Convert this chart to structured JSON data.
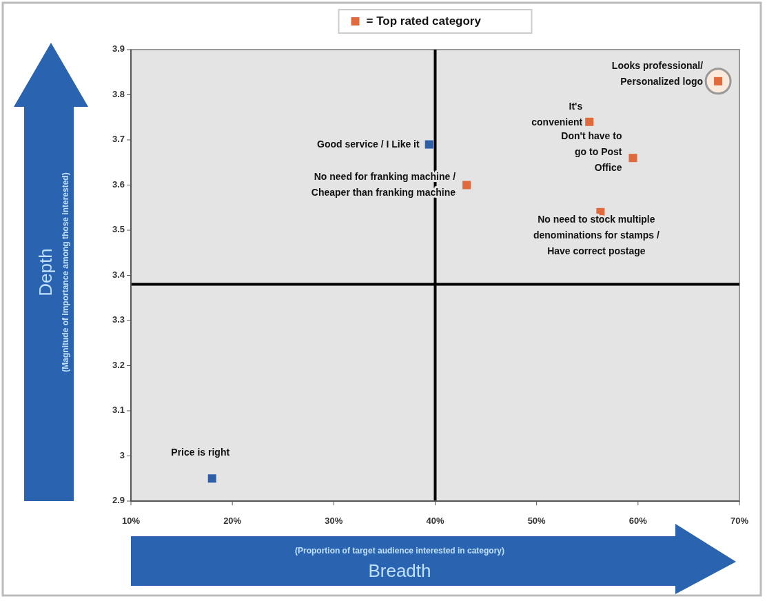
{
  "chart_data": {
    "type": "scatter",
    "xlabel": "(Proportion of target audience interested in category)\nBreadth",
    "ylabel": "Depth\n(Magnitude of importance among those interested)",
    "xlim": [
      10,
      70
    ],
    "xticks": [
      {
        "value": 10,
        "label": "10%"
      },
      {
        "value": 20,
        "label": "20%"
      },
      {
        "value": 30,
        "label": "30%"
      },
      {
        "value": 40,
        "label": "40%"
      },
      {
        "value": 50,
        "label": "50%"
      },
      {
        "value": 60,
        "label": "60%"
      },
      {
        "value": 70,
        "label": "70%"
      }
    ],
    "ylim": [
      2.9,
      3.9
    ],
    "yticks": [
      2.9,
      3,
      3.1,
      3.2,
      3.3,
      3.4,
      3.5,
      3.6,
      3.7,
      3.8,
      3.9
    ],
    "series": [
      {
        "name": "= Top rated category",
        "color": "#e06a3c",
        "x": [
          43.1,
          55.2,
          59.5,
          56.3,
          67.9
        ],
        "values": [
          3.6,
          3.74,
          3.66,
          3.54,
          3.83
        ]
      },
      {
        "color": "#2e5fa6",
        "x": [
          18,
          39.4
        ],
        "values": [
          2.95,
          3.69
        ]
      }
    ],
    "annotations": [
      {
        "text": "Price is right",
        "x": 18,
        "y": 2.95
      },
      {
        "text": "Good service / I Like it",
        "x": 39.4,
        "y": 3.69
      },
      {
        "text": "No need for franking machine /\nCheaper than franking machine",
        "x": 43.1,
        "y": 3.6
      },
      {
        "text": "Looks professional/\nPersonalized logo",
        "x": 67.9,
        "y": 3.83
      },
      {
        "text": "It's\nconvenient",
        "x": 55.2,
        "y": 3.74
      },
      {
        "text": "Don't have to\ngo to Post\nOffice",
        "x": 59.5,
        "y": 3.66
      },
      {
        "text": "No need to stock multiple\ndenominations for stamps /\nHave correct postage",
        "x": 56.3,
        "y": 3.54
      }
    ],
    "ref_lines": [
      {
        "axis": "x",
        "value": 40,
        "color": "#000000"
      },
      {
        "axis": "y",
        "value": 3.38,
        "color": "#000000"
      }
    ],
    "marker": "square",
    "legend": "top",
    "grid": false
  }
}
